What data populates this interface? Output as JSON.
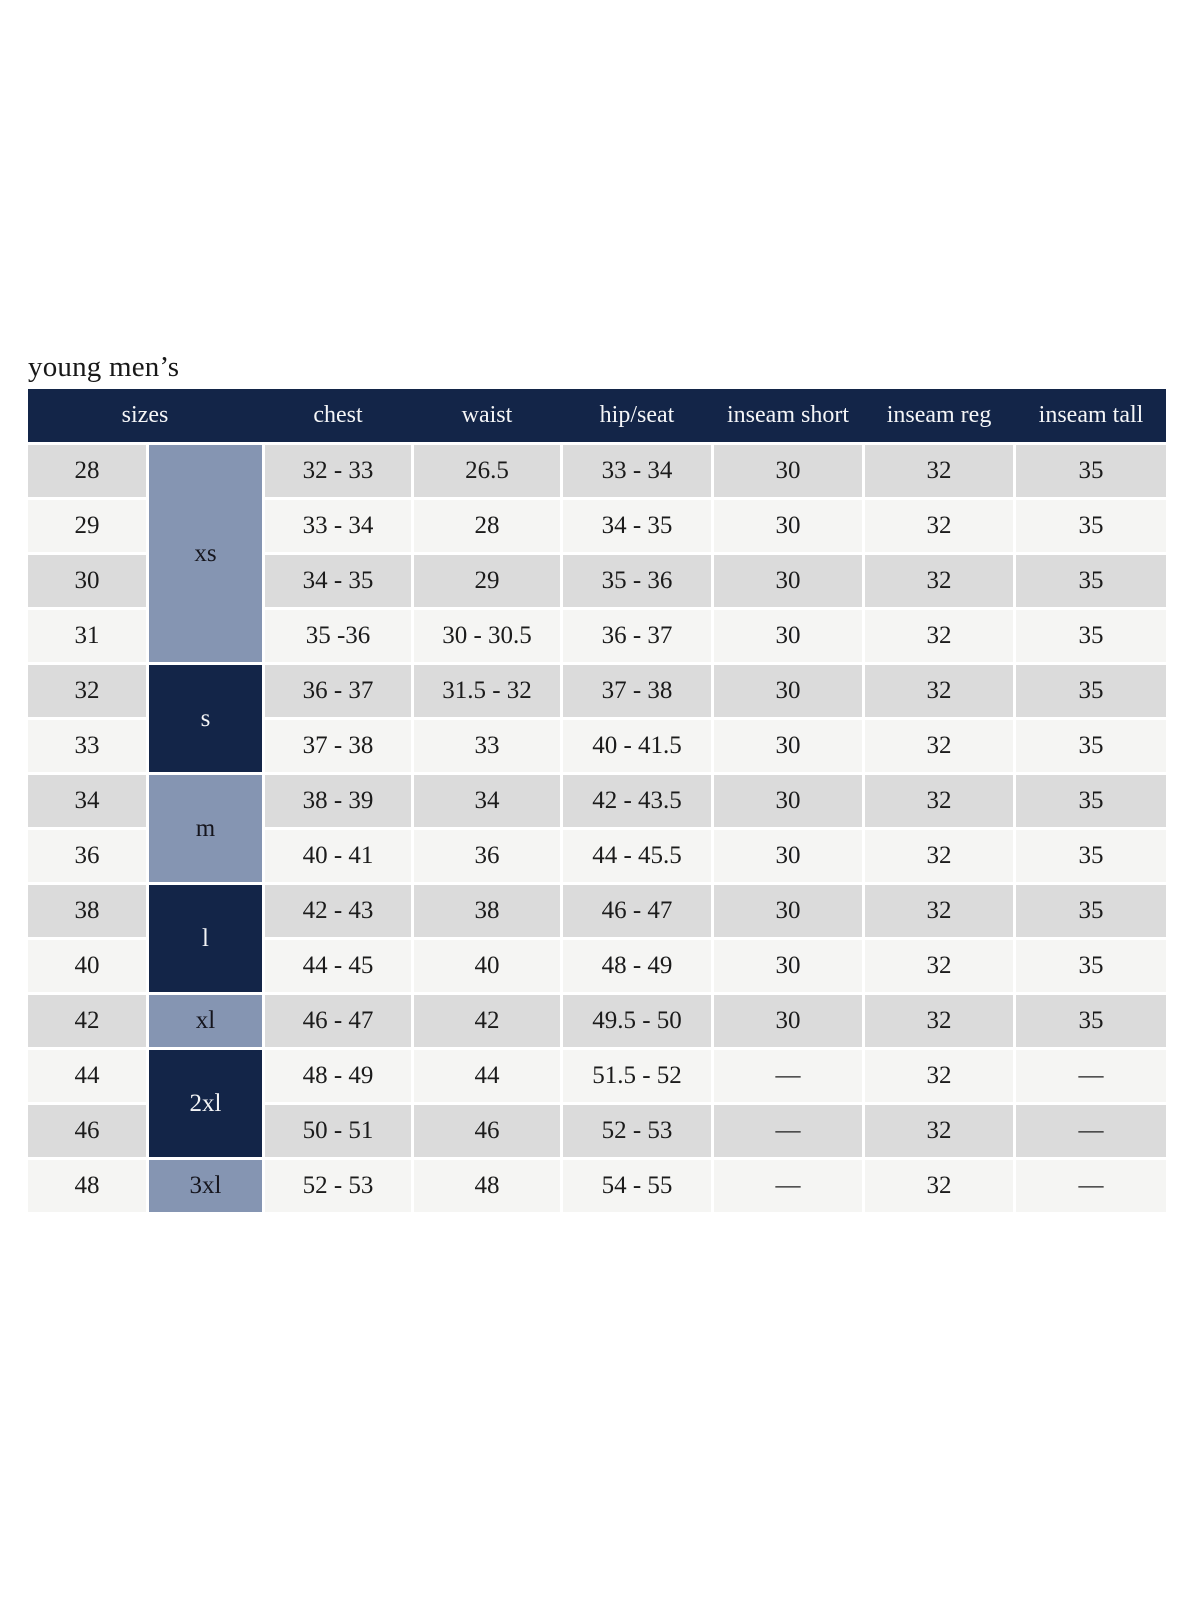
{
  "page": {
    "title": "young men’s"
  },
  "colors": {
    "header_navy": "#132548",
    "group_steel_blue": "#8595b2",
    "row_gray": "#dbdbdb",
    "row_offwhite": "#f5f5f3",
    "text_dark": "#1b1b1b",
    "text_light": "#f4f5f7"
  },
  "table": {
    "headers": [
      "sizes",
      "chest",
      "waist",
      "hip/seat",
      "inseam short",
      "inseam reg",
      "inseam tall"
    ],
    "groups": [
      {
        "label": "xs",
        "variant": "light",
        "span": 4
      },
      {
        "label": "s",
        "variant": "dark",
        "span": 2
      },
      {
        "label": "m",
        "variant": "light",
        "span": 2
      },
      {
        "label": "l",
        "variant": "dark",
        "span": 2
      },
      {
        "label": "xl",
        "variant": "light",
        "span": 1
      },
      {
        "label": "2xl",
        "variant": "dark",
        "span": 2
      },
      {
        "label": "3xl",
        "variant": "light",
        "span": 1
      }
    ],
    "rows": [
      {
        "size": "28",
        "chest": "32 - 33",
        "waist": "26.5",
        "hip": "33 - 34",
        "inseam_short": "30",
        "inseam_reg": "32",
        "inseam_tall": "35"
      },
      {
        "size": "29",
        "chest": "33 - 34",
        "waist": "28",
        "hip": "34 - 35",
        "inseam_short": "30",
        "inseam_reg": "32",
        "inseam_tall": "35"
      },
      {
        "size": "30",
        "chest": "34 - 35",
        "waist": "29",
        "hip": "35 - 36",
        "inseam_short": "30",
        "inseam_reg": "32",
        "inseam_tall": "35"
      },
      {
        "size": "31",
        "chest": "35 -36",
        "waist": "30 - 30.5",
        "hip": "36 - 37",
        "inseam_short": "30",
        "inseam_reg": "32",
        "inseam_tall": "35"
      },
      {
        "size": "32",
        "chest": "36 - 37",
        "waist": "31.5 - 32",
        "hip": "37 - 38",
        "inseam_short": "30",
        "inseam_reg": "32",
        "inseam_tall": "35"
      },
      {
        "size": "33",
        "chest": "37 - 38",
        "waist": "33",
        "hip": "40 - 41.5",
        "inseam_short": "30",
        "inseam_reg": "32",
        "inseam_tall": "35"
      },
      {
        "size": "34",
        "chest": "38 - 39",
        "waist": "34",
        "hip": "42 - 43.5",
        "inseam_short": "30",
        "inseam_reg": "32",
        "inseam_tall": "35"
      },
      {
        "size": "36",
        "chest": "40 - 41",
        "waist": "36",
        "hip": "44 - 45.5",
        "inseam_short": "30",
        "inseam_reg": "32",
        "inseam_tall": "35"
      },
      {
        "size": "38",
        "chest": "42 - 43",
        "waist": "38",
        "hip": "46 - 47",
        "inseam_short": "30",
        "inseam_reg": "32",
        "inseam_tall": "35"
      },
      {
        "size": "40",
        "chest": "44 - 45",
        "waist": "40",
        "hip": "48 - 49",
        "inseam_short": "30",
        "inseam_reg": "32",
        "inseam_tall": "35"
      },
      {
        "size": "42",
        "chest": "46 - 47",
        "waist": "42",
        "hip": "49.5 - 50",
        "inseam_short": "30",
        "inseam_reg": "32",
        "inseam_tall": "35"
      },
      {
        "size": "44",
        "chest": "48 - 49",
        "waist": "44",
        "hip": "51.5 - 52",
        "inseam_short": "—",
        "inseam_reg": "32",
        "inseam_tall": "—"
      },
      {
        "size": "46",
        "chest": "50 - 51",
        "waist": "46",
        "hip": "52 - 53",
        "inseam_short": "—",
        "inseam_reg": "32",
        "inseam_tall": "—"
      },
      {
        "size": "48",
        "chest": "52 - 53",
        "waist": "48",
        "hip": "54 - 55",
        "inseam_short": "—",
        "inseam_reg": "32",
        "inseam_tall": "—"
      }
    ]
  }
}
